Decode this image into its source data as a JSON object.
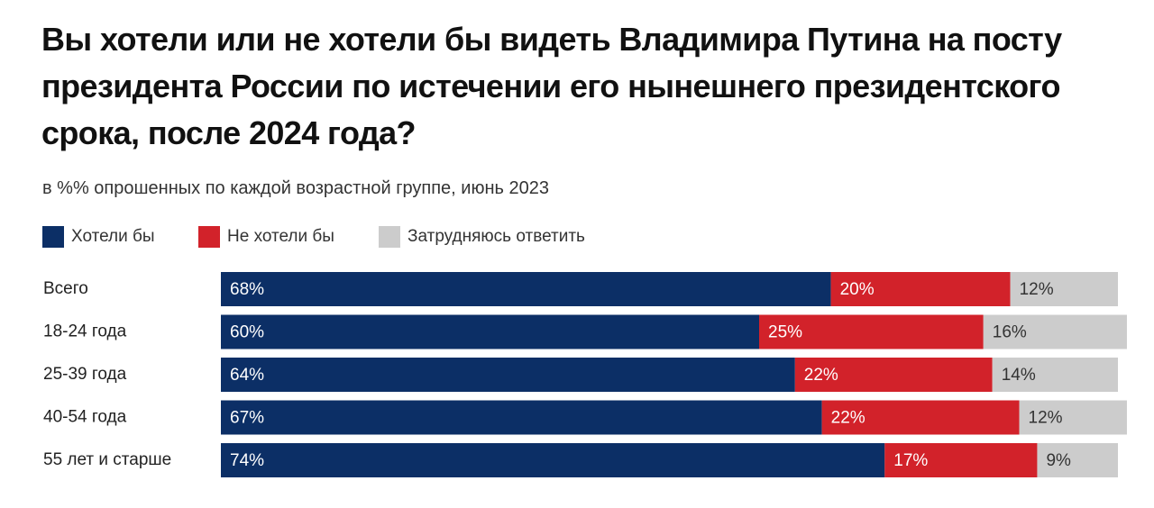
{
  "chart_data": {
    "type": "stacked-bar-horizontal",
    "title": "Вы хотели или не хотели бы видеть Владимира Путина на посту президента России по истечении его нынешнего президентского срока, после 2024 года?",
    "subtitle": "в %% опрошенных по каждой возрастной группе, июнь 2023",
    "categories": [
      "Всего",
      "18-24 года",
      "25-39 года",
      "40-54 года",
      "55 лет и старше"
    ],
    "xlim": [
      0,
      100
    ],
    "series": [
      {
        "name": "Хотели бы",
        "color": "#0c2f66",
        "values": [
          68,
          60,
          64,
          67,
          74
        ],
        "value_labels": [
          "68%",
          "60%",
          "64%",
          "67%",
          "74%"
        ]
      },
      {
        "name": "Не хотели бы",
        "color": "#d2222a",
        "values": [
          20,
          25,
          22,
          22,
          17
        ],
        "value_labels": [
          "20%",
          "25%",
          "22%",
          "22%",
          "17%"
        ]
      },
      {
        "name": "Затрудняюсь ответить",
        "color": "#cccccc",
        "values": [
          12,
          16,
          14,
          12,
          9
        ],
        "value_labels": [
          "12%",
          "16%",
          "14%",
          "12%",
          "9%"
        ]
      }
    ]
  }
}
